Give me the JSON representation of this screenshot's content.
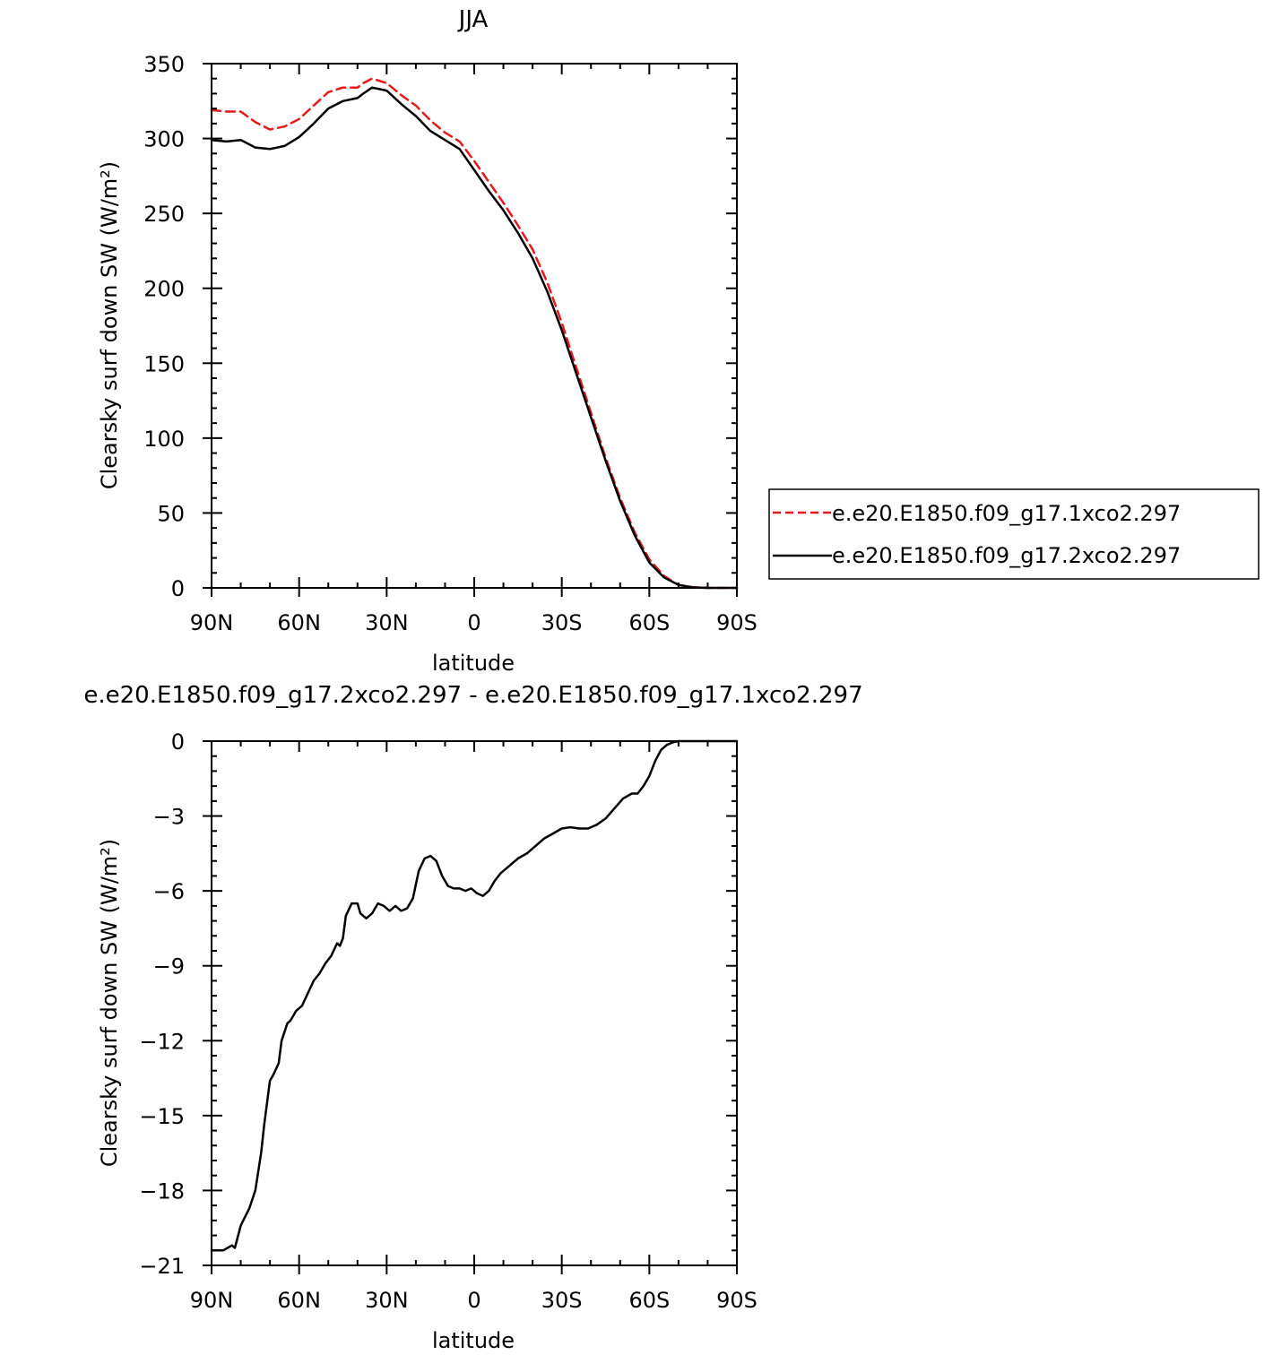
{
  "chart_data": [
    {
      "type": "line",
      "title": "JJA",
      "xlabel": "latitude",
      "ylabel": "Clearsky surf down SW (W/m²)",
      "xlim": [
        90,
        -90
      ],
      "ylim": [
        0,
        350
      ],
      "xticks": [
        90,
        60,
        30,
        0,
        -30,
        -60,
        -90
      ],
      "xticklabels": [
        "90N",
        "60N",
        "30N",
        "0",
        "30S",
        "60S",
        "90S"
      ],
      "yticks": [
        0,
        50,
        100,
        150,
        200,
        250,
        300,
        350
      ],
      "yticklabels": [
        "0",
        "50",
        "100",
        "150",
        "200",
        "250",
        "300",
        "350"
      ],
      "legend": {
        "placement": "right"
      },
      "x": [
        90,
        85,
        80,
        75,
        70,
        65,
        60,
        55,
        50,
        45,
        40,
        38,
        35,
        30,
        25,
        20,
        15,
        10,
        5,
        0,
        -5,
        -10,
        -15,
        -20,
        -25,
        -30,
        -35,
        -40,
        -45,
        -50,
        -55,
        -60,
        -65,
        -70,
        -75,
        -80,
        -85,
        -90
      ],
      "series": [
        {
          "name": "e.e20.E1850.f09_g17.1xco2.297",
          "color": "#e41a1c",
          "dash": true,
          "values": [
            319,
            318,
            318,
            311,
            306,
            308,
            313,
            322,
            331,
            334,
            334,
            337,
            340,
            337,
            329,
            322,
            312,
            304,
            298,
            285,
            271,
            257,
            242,
            226,
            204,
            177,
            147,
            117,
            87,
            60,
            37,
            19,
            8,
            2,
            0.4,
            0,
            0,
            0
          ]
        },
        {
          "name": "e.e20.E1850.f09_g17.2xco2.297",
          "color": "#000000",
          "dash": false,
          "values": [
            299,
            298,
            299,
            294,
            293,
            295,
            301,
            310,
            320,
            325,
            327,
            330,
            334,
            332,
            323,
            315,
            305,
            299,
            293,
            279,
            265,
            252,
            237,
            220,
            198,
            172,
            143,
            114,
            85,
            58,
            35,
            17,
            7,
            2,
            0.3,
            0,
            0,
            0
          ]
        }
      ]
    },
    {
      "type": "line",
      "title": "e.e20.E1850.f09_g17.2xco2.297 - e.e20.E1850.f09_g17.1xco2.297",
      "xlabel": "latitude",
      "ylabel": "Clearsky surf down SW (W/m²)",
      "xlim": [
        90,
        -90
      ],
      "ylim": [
        -21,
        0
      ],
      "xticks": [
        90,
        60,
        30,
        0,
        -30,
        -60,
        -90
      ],
      "xticklabels": [
        "90N",
        "60N",
        "30N",
        "0",
        "30S",
        "60S",
        "90S"
      ],
      "yticks": [
        0,
        -3,
        -6,
        -9,
        -12,
        -15,
        -18,
        -21
      ],
      "yticklabels": [
        "0",
        "−3",
        "−6",
        "−9",
        "−12",
        "−15",
        "−18",
        "−21"
      ],
      "x": [
        90,
        86,
        83,
        82,
        80,
        77,
        75,
        73,
        72,
        70,
        69,
        67,
        66,
        64,
        63,
        61,
        59,
        57,
        55,
        53,
        51,
        49,
        47,
        46,
        45,
        44,
        42,
        40,
        39,
        37,
        35,
        33,
        31,
        29,
        27,
        25,
        23,
        21,
        19,
        17,
        15,
        13,
        11,
        9,
        7,
        5,
        3,
        1,
        -1,
        -3,
        -5,
        -7,
        -9,
        -11,
        -13,
        -15,
        -18,
        -21,
        -24,
        -27,
        -30,
        -33,
        -36,
        -39,
        -42,
        -45,
        -48,
        -51,
        -54,
        -56,
        -58,
        -60,
        -62,
        -64,
        -66,
        -68,
        -70,
        -72,
        -75,
        -80,
        -85,
        -90
      ],
      "series": [
        {
          "name": "",
          "color": "#000000",
          "dash": false,
          "values": [
            -20.4,
            -20.4,
            -20.2,
            -20.3,
            -19.4,
            -18.7,
            -18.0,
            -16.5,
            -15.4,
            -13.6,
            -13.4,
            -12.9,
            -12.0,
            -11.3,
            -11.2,
            -10.8,
            -10.6,
            -10.1,
            -9.6,
            -9.3,
            -8.9,
            -8.6,
            -8.1,
            -8.2,
            -7.9,
            -7.0,
            -6.5,
            -6.5,
            -6.9,
            -7.1,
            -6.9,
            -6.5,
            -6.6,
            -6.8,
            -6.6,
            -6.8,
            -6.7,
            -6.3,
            -5.2,
            -4.7,
            -4.6,
            -4.8,
            -5.4,
            -5.8,
            -5.9,
            -5.9,
            -6.0,
            -5.9,
            -6.1,
            -6.2,
            -6.0,
            -5.6,
            -5.3,
            -5.1,
            -4.9,
            -4.7,
            -4.5,
            -4.2,
            -3.9,
            -3.7,
            -3.5,
            -3.45,
            -3.5,
            -3.5,
            -3.35,
            -3.1,
            -2.7,
            -2.3,
            -2.1,
            -2.1,
            -1.8,
            -1.4,
            -0.8,
            -0.35,
            -0.15,
            -0.05,
            0,
            0,
            0,
            0,
            0,
            0
          ]
        }
      ]
    }
  ]
}
